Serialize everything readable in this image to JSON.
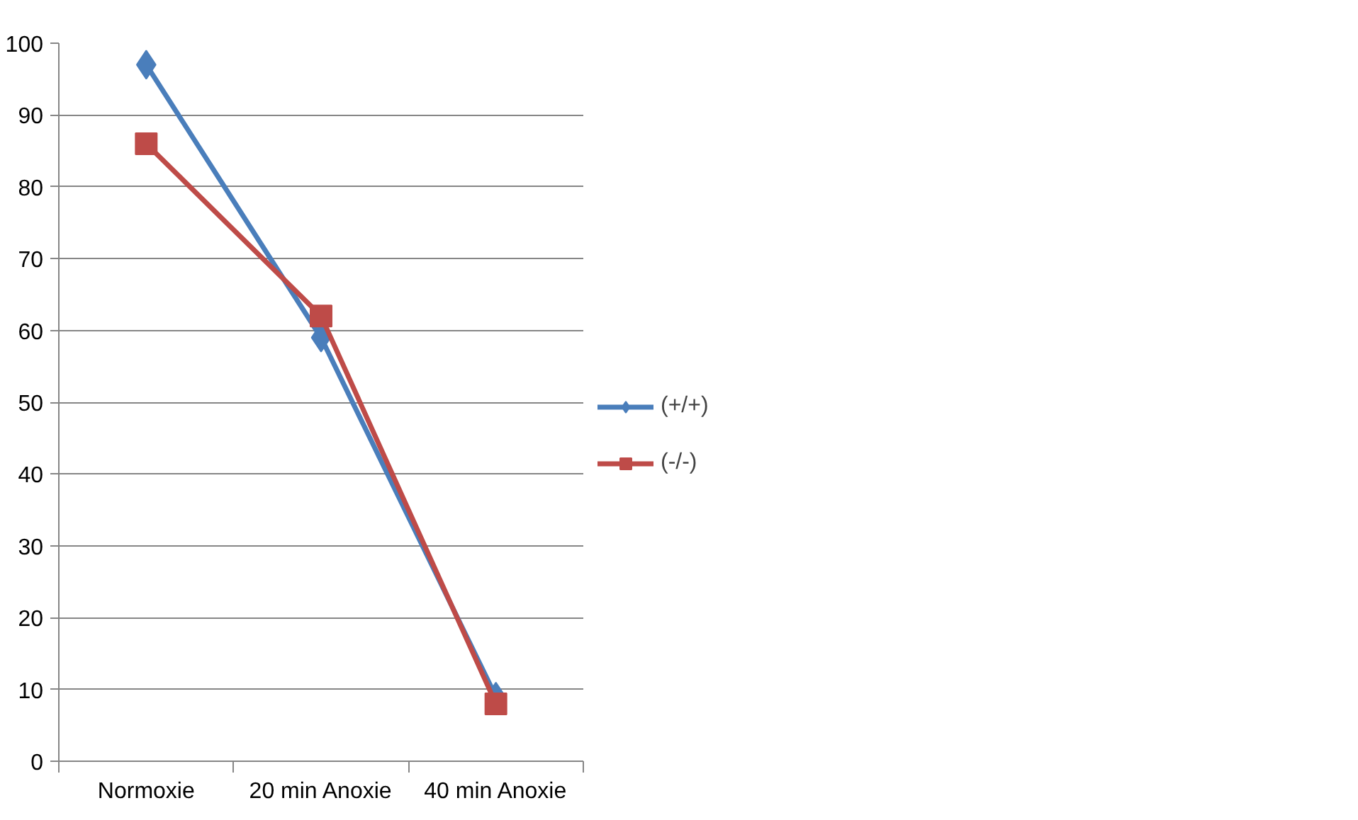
{
  "chart_data": {
    "type": "line",
    "categories": [
      "Normoxie",
      "20 min Anoxie",
      "40 min Anoxie"
    ],
    "series": [
      {
        "name": "(+/+)",
        "color": "#4a7ebb",
        "values": [
          97,
          59,
          9
        ],
        "marker": "diamond"
      },
      {
        "name": "(-/-)",
        "color": "#be4b48",
        "values": [
          86,
          62,
          8
        ],
        "marker": "square"
      }
    ],
    "ylim": [
      0,
      100
    ],
    "yticks": [
      0,
      10,
      20,
      30,
      40,
      50,
      60,
      70,
      80,
      90,
      100
    ],
    "grid": "y",
    "legend": "right",
    "line_style": "solid"
  }
}
